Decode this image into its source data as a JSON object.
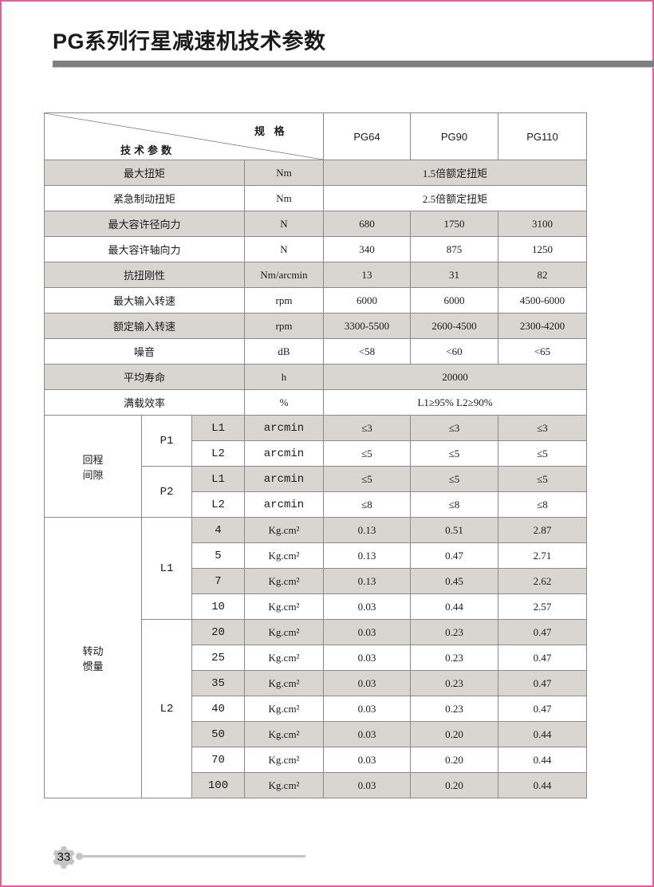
{
  "page_title": "PG系列行星减速机技术参数",
  "page_number": "33",
  "colors": {
    "frame": "#e0609c",
    "title_bar": "#808082",
    "row_shade": "#d9d6d1"
  },
  "table": {
    "header": {
      "spec_label": "规 格",
      "param_label": "技术参数",
      "models": [
        "PG64",
        "PG90",
        "PG110"
      ]
    },
    "rows": [
      {
        "label": "最大扭矩",
        "unit": "Nm",
        "merged": "1.5倍额定扭矩",
        "shade": true
      },
      {
        "label": "紧急制动扭矩",
        "unit": "Nm",
        "merged": "2.5倍额定扭矩",
        "shade": false
      },
      {
        "label": "最大容许径向力",
        "unit": "N",
        "values": [
          "680",
          "1750",
          "3100"
        ],
        "shade": true
      },
      {
        "label": "最大容许轴向力",
        "unit": "N",
        "values": [
          "340",
          "875",
          "1250"
        ],
        "shade": false
      },
      {
        "label": "抗扭刚性",
        "unit": "Nm/arcmin",
        "values": [
          "13",
          "31",
          "82"
        ],
        "shade": true
      },
      {
        "label": "最大输入转速",
        "unit": "rpm",
        "values": [
          "6000",
          "6000",
          "4500-6000"
        ],
        "shade": false
      },
      {
        "label": "额定输入转速",
        "unit": "rpm",
        "values": [
          "3300-5500",
          "2600-4500",
          "2300-4200"
        ],
        "shade": true
      },
      {
        "label": "噪音",
        "unit": "dB",
        "values": [
          "<58",
          "<60",
          "<65"
        ],
        "shade": false
      },
      {
        "label": "平均寿命",
        "unit": "h",
        "merged": "20000",
        "shade": true
      },
      {
        "label": "满载效率",
        "unit": "%",
        "merged": "L1≥95%   L2≥90%",
        "shade": false
      }
    ],
    "backlash": {
      "label": "回程\n间隙",
      "groups": [
        {
          "label": "P1",
          "rows": [
            {
              "stage": "L1",
              "unit": "arcmin",
              "values": [
                "≤3",
                "≤3",
                "≤3"
              ],
              "shade": true
            },
            {
              "stage": "L2",
              "unit": "arcmin",
              "values": [
                "≤5",
                "≤5",
                "≤5"
              ],
              "shade": false
            }
          ]
        },
        {
          "label": "P2",
          "rows": [
            {
              "stage": "L1",
              "unit": "arcmin",
              "values": [
                "≤5",
                "≤5",
                "≤5"
              ],
              "shade": true
            },
            {
              "stage": "L2",
              "unit": "arcmin",
              "values": [
                "≤8",
                "≤8",
                "≤8"
              ],
              "shade": false
            }
          ]
        }
      ]
    },
    "inertia": {
      "label": "转动\n惯量",
      "unit": "Kg.cm²",
      "groups": [
        {
          "label": "L1",
          "rows": [
            {
              "ratio": "4",
              "values": [
                "0.13",
                "0.51",
                "2.87"
              ],
              "shade": true
            },
            {
              "ratio": "5",
              "values": [
                "0.13",
                "0.47",
                "2.71"
              ],
              "shade": false
            },
            {
              "ratio": "7",
              "values": [
                "0.13",
                "0.45",
                "2.62"
              ],
              "shade": true
            },
            {
              "ratio": "10",
              "values": [
                "0.03",
                "0.44",
                "2.57"
              ],
              "shade": false
            }
          ]
        },
        {
          "label": "L2",
          "rows": [
            {
              "ratio": "20",
              "values": [
                "0.03",
                "0.23",
                "0.47"
              ],
              "shade": true
            },
            {
              "ratio": "25",
              "values": [
                "0.03",
                "0.23",
                "0.47"
              ],
              "shade": false
            },
            {
              "ratio": "35",
              "values": [
                "0.03",
                "0.23",
                "0.47"
              ],
              "shade": true
            },
            {
              "ratio": "40",
              "values": [
                "0.03",
                "0.23",
                "0.47"
              ],
              "shade": false
            },
            {
              "ratio": "50",
              "values": [
                "0.03",
                "0.20",
                "0.44"
              ],
              "shade": true
            },
            {
              "ratio": "70",
              "values": [
                "0.03",
                "0.20",
                "0.44"
              ],
              "shade": false
            },
            {
              "ratio": "100",
              "values": [
                "0.03",
                "0.20",
                "0.44"
              ],
              "shade": true
            }
          ]
        }
      ]
    }
  }
}
